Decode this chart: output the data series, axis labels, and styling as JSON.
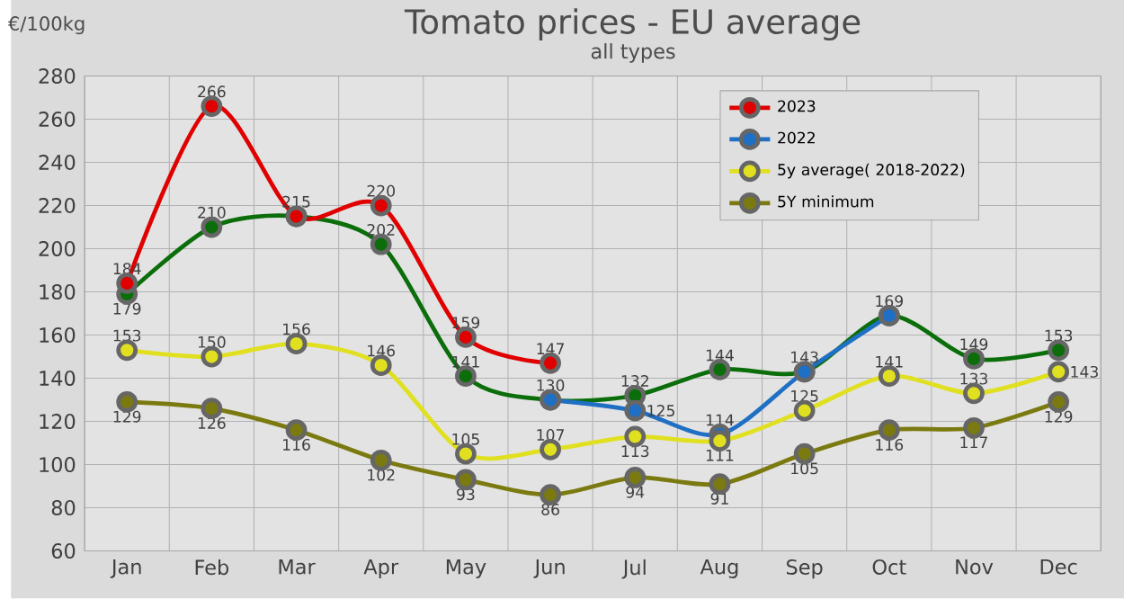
{
  "chart_data": {
    "type": "line",
    "title": "Tomato prices - EU average",
    "subtitle": "all types",
    "ylabel": "€/100kg",
    "categories": [
      "Jan",
      "Feb",
      "Mar",
      "Apr",
      "May",
      "Jun",
      "Jul",
      "Aug",
      "Sep",
      "Oct",
      "Nov",
      "Dec"
    ],
    "series": [
      {
        "color": "#0b6e0b",
        "values": [
          179,
          210,
          215,
          202,
          141,
          130,
          132,
          144,
          143,
          169,
          149,
          153
        ],
        "value_labels": [
          "179",
          "210",
          "215",
          "202",
          "141",
          "130",
          "132",
          "144",
          "143",
          "169",
          "149",
          "153"
        ]
      },
      {
        "name": "2023",
        "color": "#e00000",
        "values": [
          184,
          266,
          215,
          220,
          159,
          147,
          null,
          null,
          null,
          null,
          null,
          null
        ],
        "value_labels": [
          "184",
          "266",
          null,
          "220",
          "159",
          "147",
          null,
          null,
          null,
          null,
          null,
          null
        ]
      },
      {
        "name": "2022",
        "color": "#1f6fc5",
        "values": [
          null,
          null,
          null,
          null,
          null,
          130,
          125,
          114,
          143,
          169,
          null,
          null
        ],
        "value_labels": [
          null,
          null,
          null,
          null,
          null,
          null,
          "125",
          "114",
          null,
          null,
          null,
          null
        ]
      },
      {
        "name": "5y average( 2018-2022)",
        "color": "#e0e020",
        "values": [
          153,
          150,
          156,
          146,
          105,
          107,
          113,
          111,
          125,
          141,
          133,
          143
        ],
        "value_labels": [
          "153",
          "150",
          "156",
          "146",
          "105",
          "107",
          "113",
          "111",
          "125",
          "141",
          "133",
          "143"
        ]
      },
      {
        "name": "5Y minimum",
        "color": "#7a7a10",
        "values": [
          129,
          126,
          116,
          102,
          93,
          86,
          94,
          91,
          105,
          116,
          117,
          129
        ],
        "value_labels": [
          "129",
          "126",
          "116",
          "102",
          "93",
          "86",
          "94",
          "91",
          "105",
          "116",
          "117",
          "129"
        ]
      }
    ],
    "ylim": [
      60,
      280
    ],
    "yticks": [
      60,
      80,
      100,
      120,
      140,
      160,
      180,
      200,
      220,
      240,
      260,
      280
    ],
    "grid": true,
    "legend": "top right",
    "marker": "circle",
    "line_style": "solid"
  }
}
